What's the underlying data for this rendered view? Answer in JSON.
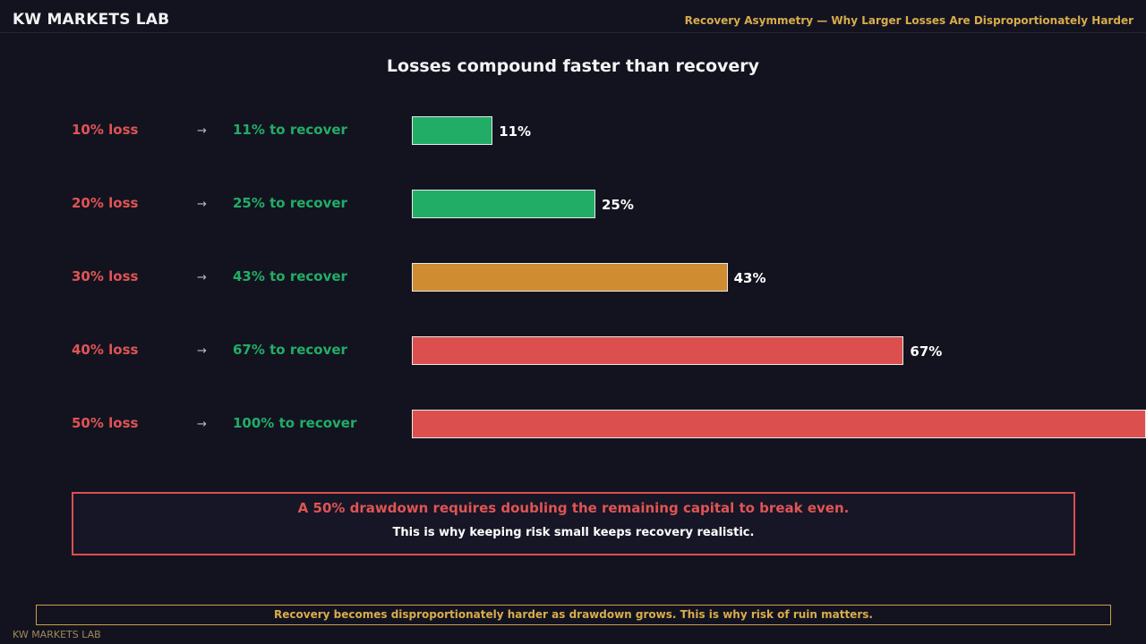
{
  "header": {
    "brand": "KW MARKETS LAB",
    "title": "Recovery Asymmetry — Why Larger Losses Are Disproportionately Harder"
  },
  "chart_data": {
    "type": "bar",
    "orientation": "horizontal",
    "title": "Losses compound faster than recovery",
    "categories": [
      "10% loss",
      "20% loss",
      "30% loss",
      "40% loss",
      "50% loss"
    ],
    "arrow": "→",
    "recovery_labels": [
      "11% to recover",
      "25% to recover",
      "43% to recover",
      "67% to recover",
      "100% to recover"
    ],
    "values": [
      11,
      25,
      43,
      67,
      100
    ],
    "value_labels": [
      "11%",
      "25%",
      "43%",
      "67%",
      ""
    ],
    "unit": "%",
    "colors": [
      "#22ad66",
      "#22ad66",
      "#d08c30",
      "#dc4f4f",
      "#dc4f4f"
    ],
    "grid": false,
    "legend": "none"
  },
  "callout": {
    "main": "A 50% drawdown requires doubling the remaining capital to break even.",
    "sub": "This is why keeping risk small keeps recovery realistic."
  },
  "footer": {
    "note": "Recovery becomes disproportionately harder as drawdown grows. This is why risk of ruin matters.",
    "watermark": "KW MARKETS LAB"
  },
  "colors": {
    "background": "#131320",
    "accent_gold": "#d8ad4a",
    "loss_red": "#e05454",
    "recover_green": "#22ad66"
  }
}
